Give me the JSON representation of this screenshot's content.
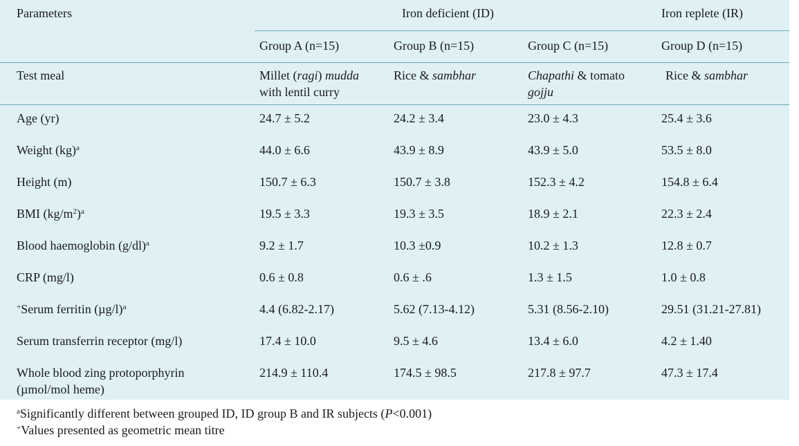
{
  "header": {
    "parameters": "Parameters",
    "iron_deficient": "Iron deficient (ID)",
    "iron_replete": "Iron replete (IR)",
    "groups": [
      "Group A (n=15)",
      "Group B (n=15)",
      "Group C (n=15)",
      "Group D (n=15)"
    ]
  },
  "test_meal": {
    "label": "Test meal",
    "a_line1_pre": "Millet (",
    "a_line1_it1": "ragi",
    "a_line1_mid": ") ",
    "a_line1_it2": "mudda",
    "a_line2": "with lentil curry",
    "b_pre": "Rice & ",
    "b_it": "sambhar",
    "c_it1": "Chapathi",
    "c_mid": " & tomato",
    "c_it2": "gojju",
    "d_pre": "Rice & ",
    "d_it": "sambhar"
  },
  "rows": [
    {
      "label": "Age (yr)",
      "sup": "",
      "prefix": "",
      "a": "24.7 ± 5.2",
      "b": "24.2 ± 3.4",
      "c": "23.0 ± 4.3",
      "d": "25.4 ± 3.6"
    },
    {
      "label": "Weight (kg)",
      "sup": "a",
      "prefix": "",
      "a": "44.0 ± 6.6",
      "b": "43.9 ± 8.9",
      "c": "43.9 ± 5.0",
      "d": "53.5 ± 8.0"
    },
    {
      "label": "Height (m)",
      "sup": "",
      "prefix": "",
      "a": "150.7 ± 6.3",
      "b": "150.7 ± 3.8",
      "c": "152.3 ± 4.2",
      "d": "154.8 ± 6.4"
    },
    {
      "label": "BMI (kg/m",
      "sup": "a",
      "prefix": "",
      "a": "19.5 ± 3.3",
      "b": "19.3 ± 3.5",
      "c": "18.9 ± 2.1",
      "d": "22.3 ± 2.4"
    },
    {
      "label": "Blood haemoglobin (g/dl)",
      "sup": "a",
      "prefix": "",
      "a": "9.2 ± 1.7",
      "b": "10.3 ±0.9",
      "c": "10.2 ± 1.3",
      "d": "12.8 ± 0.7"
    },
    {
      "label": "CRP (mg/l)",
      "sup": "",
      "prefix": "",
      "a": "0.6 ± 0.8",
      "b": "0.6 ± .6",
      "c": "1.3 ± 1.5",
      "d": "1.0 ± 0.8"
    },
    {
      "label": "Serum ferritin (µg/l)",
      "sup": "a",
      "prefix": "+",
      "a": "4.4 (6.82-2.17)",
      "b": "5.62 (7.13-4.12)",
      "c": "5.31 (8.56-2.10)",
      "d": "29.51 (31.21-27.81)"
    },
    {
      "label": "Serum transferrin receptor (mg/l)",
      "sup": "",
      "prefix": "",
      "a": "17.4 ± 10.0",
      "b": "9.5 ± 4.6",
      "c": "13.4 ± 6.0",
      "d": "4.2 ± 1.40"
    },
    {
      "label": "Whole blood zing protoporphyrin",
      "label2": "(µmol/mol heme)",
      "sup": "",
      "prefix": "",
      "a": "214.9 ± 110.4",
      "b": "174.5 ± 98.5",
      "c": "217.8 ± 97.7",
      "d": "47.3 ± 17.4"
    }
  ],
  "bmi_exp": "2",
  "bmi_close": ")",
  "footnotes": {
    "f1_sup": "a",
    "f1_pre": "Significantly different between grouped ID, ID group B and IR subjects (",
    "f1_it": "P",
    "f1_post": "<0.001)",
    "f2_sup": "+",
    "f2_text": "Values presented as geometric mean titre"
  }
}
